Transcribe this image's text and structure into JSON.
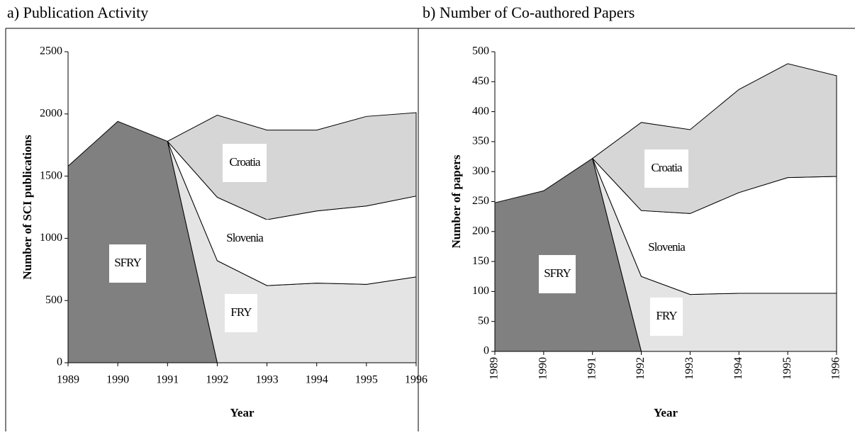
{
  "chart_data": [
    {
      "type": "area",
      "title": "a) Publication Activity",
      "xlabel": "Year",
      "ylabel": "Number of SCI publications",
      "x": [
        1989,
        1990,
        1991,
        1992,
        1993,
        1994,
        1995,
        1996
      ],
      "xlim": [
        1989,
        1996
      ],
      "xticks": [
        1989,
        1990,
        1991,
        1992,
        1993,
        1994,
        1995,
        1996
      ],
      "ylim": [
        0,
        2500
      ],
      "yticks": [
        0,
        500,
        1000,
        1500,
        2000,
        2500
      ],
      "series": [
        {
          "name": "SFRY",
          "color": "#808080",
          "values": [
            1580,
            1940,
            1780,
            0,
            null,
            null,
            null,
            null
          ]
        },
        {
          "name": "FRY",
          "color": "#e4e4e4",
          "values": [
            null,
            null,
            0,
            820,
            620,
            640,
            630,
            690
          ]
        },
        {
          "name": "Slovenia",
          "color": "#ffffff",
          "values": [
            null,
            null,
            0,
            510,
            530,
            580,
            630,
            650
          ]
        },
        {
          "name": "Croatia",
          "color": "#d6d6d6",
          "values": [
            null,
            null,
            0,
            660,
            720,
            650,
            720,
            670
          ]
        }
      ]
    },
    {
      "type": "area",
      "title": "b) Number of Co-authored Papers",
      "xlabel": "Year",
      "ylabel": "Number of papers",
      "x": [
        1989,
        1990,
        1991,
        1992,
        1993,
        1994,
        1995,
        1996
      ],
      "xlim": [
        1989,
        1996
      ],
      "xticks": [
        1989,
        1990,
        1991,
        1992,
        1993,
        1994,
        1995,
        1996
      ],
      "ylim": [
        0,
        500
      ],
      "yticks": [
        0,
        50,
        100,
        150,
        200,
        250,
        300,
        350,
        400,
        450,
        500
      ],
      "series": [
        {
          "name": "SFRY",
          "color": "#808080",
          "values": [
            248,
            268,
            322,
            0,
            null,
            null,
            null,
            null
          ]
        },
        {
          "name": "FRY",
          "color": "#e4e4e4",
          "values": [
            null,
            null,
            0,
            125,
            95,
            97,
            97,
            97
          ]
        },
        {
          "name": "Slovenia",
          "color": "#ffffff",
          "values": [
            null,
            null,
            0,
            110,
            135,
            168,
            193,
            195
          ]
        },
        {
          "name": "Croatia",
          "color": "#d6d6d6",
          "values": [
            null,
            null,
            0,
            147,
            140,
            172,
            190,
            168
          ]
        }
      ]
    }
  ]
}
